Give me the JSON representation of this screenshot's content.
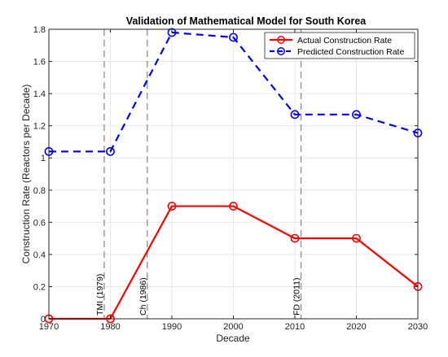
{
  "chart_data": {
    "type": "line",
    "title": "Validation of Mathematical Model for South Korea",
    "xlabel": "Decade",
    "ylabel": "Construction Rate (Reactors per Decade)",
    "x": [
      1970,
      1980,
      1990,
      2000,
      2010,
      2020,
      2030
    ],
    "xlim": [
      1970,
      2030
    ],
    "ylim": [
      0,
      1.8
    ],
    "xticks": [
      "1970",
      "1980",
      "1990",
      "2000",
      "2010",
      "2020",
      "2030"
    ],
    "yticks": [
      "0",
      "0.2",
      "0.4",
      "0.6",
      "0.8",
      "1",
      "1.2",
      "1.4",
      "1.6",
      "1.8"
    ],
    "grid": true,
    "legend_position": "top-right",
    "series": [
      {
        "name": "Actual Construction Rate",
        "values": [
          0,
          0,
          0.7,
          0.7,
          0.5,
          0.5,
          0.2
        ],
        "color": "#ff0000",
        "line": "solid",
        "marker": "circle"
      },
      {
        "name": "Predicted Construction Rate",
        "values": [
          1.04,
          1.04,
          1.78,
          1.75,
          1.27,
          1.27,
          1.155
        ],
        "color": "#0000ff",
        "line": "dashed",
        "marker": "circle"
      }
    ],
    "events": [
      {
        "label": "TMI (1979)",
        "x": 1979
      },
      {
        "label": "Ch (1986)",
        "x": 1986
      },
      {
        "label": "FD (2011)",
        "x": 2011
      }
    ]
  }
}
